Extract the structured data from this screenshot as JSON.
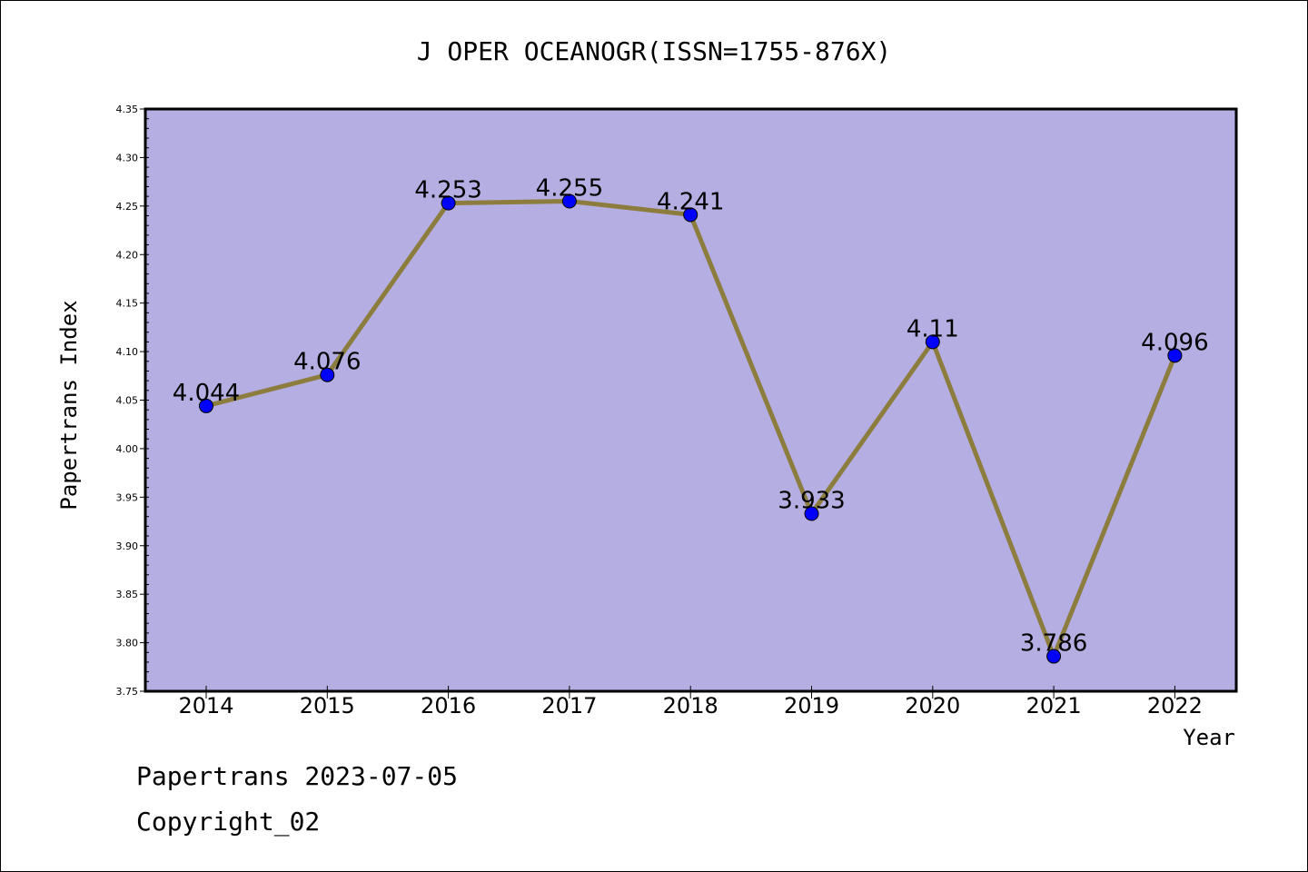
{
  "chart_data": {
    "type": "line",
    "title": "J OPER OCEANOGR(ISSN=1755-876X)",
    "xlabel": "Year",
    "ylabel": "Papertrans Index",
    "categories": [
      "2014",
      "2015",
      "2016",
      "2017",
      "2018",
      "2019",
      "2020",
      "2021",
      "2022"
    ],
    "values": [
      4.044,
      4.076,
      4.253,
      4.255,
      4.241,
      3.933,
      4.11,
      3.786,
      4.096
    ],
    "value_labels": [
      "4.044",
      "4.076",
      "4.253",
      "4.255",
      "4.241",
      "3.933",
      "4.11",
      "3.786",
      "4.096"
    ],
    "ylim": [
      3.75,
      4.35
    ],
    "yticks": [
      "3.75",
      "3.80",
      "3.85",
      "3.90",
      "3.95",
      "4.00",
      "4.05",
      "4.10",
      "4.15",
      "4.20",
      "4.25",
      "4.30",
      "4.35"
    ],
    "grid": false,
    "colors": {
      "plot_background": "#b5aee2",
      "line": "#8c7d3f",
      "marker": "#0000ff"
    }
  },
  "footer": {
    "line1": "Papertrans 2023-07-05",
    "line2": "Copyright_02"
  }
}
